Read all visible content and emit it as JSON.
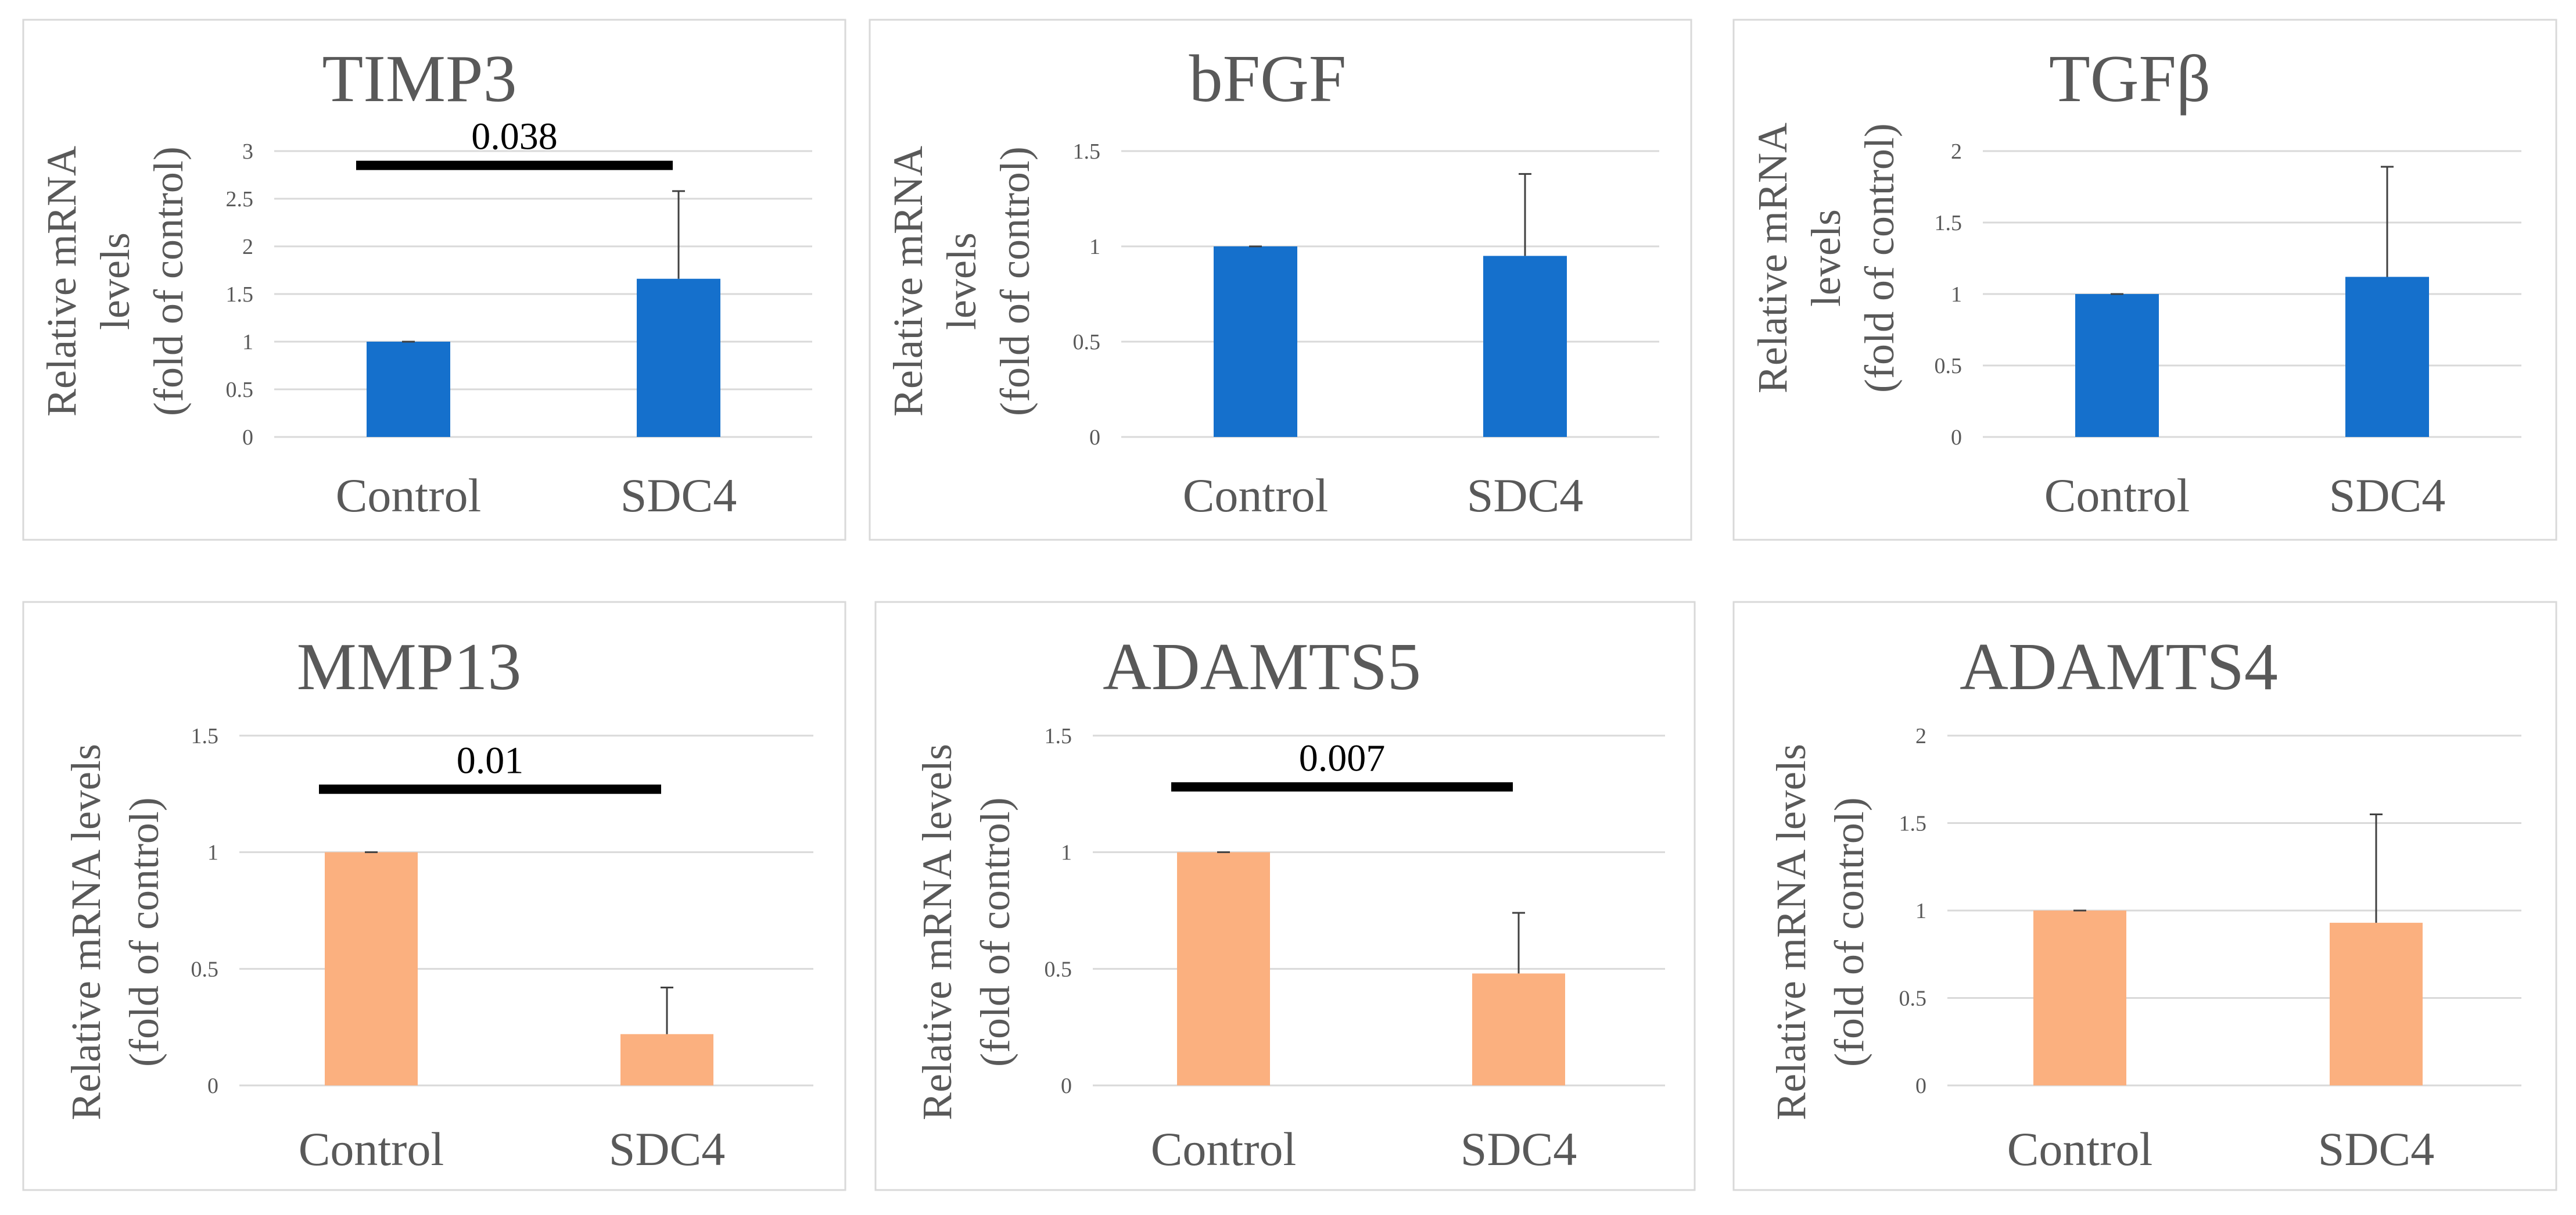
{
  "chart_data": [
    {
      "type": "bar",
      "title": "TIMP3",
      "ylabel": [
        "Relative mRNA",
        "levels",
        "(fold of control)"
      ],
      "categories": [
        "Control",
        "SDC4"
      ],
      "values": [
        1.0,
        1.66
      ],
      "error": [
        0.0,
        0.92
      ],
      "ylim": [
        0,
        3
      ],
      "yticks": [
        "0",
        "0.5",
        "1",
        "1.5",
        "2",
        "2.5",
        "3"
      ],
      "color": "#1570cc",
      "significance": {
        "label": "0.038",
        "y": 2.85
      }
    },
    {
      "type": "bar",
      "title": "bFGF",
      "ylabel": [
        "Relative mRNA",
        "levels",
        "(fold of control)"
      ],
      "categories": [
        "Control",
        "SDC4"
      ],
      "values": [
        1.0,
        0.95
      ],
      "error": [
        0.0,
        0.43
      ],
      "ylim": [
        0,
        1.5
      ],
      "yticks": [
        "0",
        "0.5",
        "1",
        "1.5"
      ],
      "color": "#1570cc"
    },
    {
      "type": "bar",
      "title": "TGFβ",
      "ylabel": [
        "Relative mRNA",
        "levels",
        "(fold of control)"
      ],
      "categories": [
        "Control",
        "SDC4"
      ],
      "values": [
        1.0,
        1.12
      ],
      "error": [
        0.0,
        0.77
      ],
      "ylim": [
        0,
        2
      ],
      "yticks": [
        "0",
        "0.5",
        "1",
        "1.5",
        "2"
      ],
      "color": "#1570cc"
    },
    {
      "type": "bar",
      "title": "MMP13",
      "ylabel": [
        "Relative mRNA levels",
        "(fold of control)"
      ],
      "categories": [
        "Control",
        "SDC4"
      ],
      "values": [
        1.0,
        0.22
      ],
      "error": [
        0.0,
        0.2
      ],
      "ylim": [
        0,
        1.5
      ],
      "yticks": [
        "0",
        "0.5",
        "1",
        "1.5"
      ],
      "color": "#fbb07f",
      "significance": {
        "label": "0.01",
        "y": 1.27
      }
    },
    {
      "type": "bar",
      "title": "ADAMTS5",
      "ylabel": [
        "Relative mRNA levels",
        "(fold of control)"
      ],
      "categories": [
        "Control",
        "SDC4"
      ],
      "values": [
        1.0,
        0.48
      ],
      "error": [
        0.0,
        0.26
      ],
      "ylim": [
        0,
        1.5
      ],
      "yticks": [
        "0",
        "0.5",
        "1",
        "1.5"
      ],
      "color": "#fbb07f",
      "significance": {
        "label": "0.007",
        "y": 1.28
      }
    },
    {
      "type": "bar",
      "title": "ADAMTS4",
      "ylabel": [
        "Relative mRNA levels",
        "(fold of control)"
      ],
      "categories": [
        "Control",
        "SDC4"
      ],
      "values": [
        1.0,
        0.93
      ],
      "error": [
        0.0,
        0.62
      ],
      "ylim": [
        0,
        2
      ],
      "yticks": [
        "0",
        "0.5",
        "1",
        "1.5",
        "2"
      ],
      "color": "#fbb07f"
    }
  ]
}
